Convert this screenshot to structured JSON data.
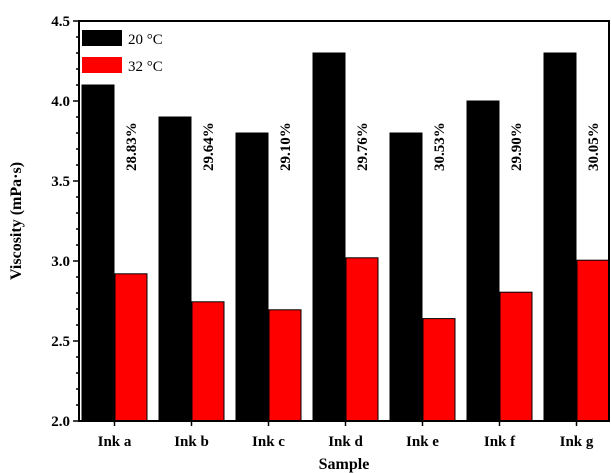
{
  "chart_data": {
    "type": "bar",
    "xlabel": "Sample",
    "ylabel": "Viscosity (mPa·s)",
    "categories": [
      "Ink a",
      "Ink b",
      "Ink c",
      "Ink d",
      "Ink e",
      "Ink f",
      "Ink g"
    ],
    "series": [
      {
        "name": "20 °C",
        "values": [
          4.1,
          3.9,
          3.8,
          4.3,
          3.8,
          4.0,
          4.3
        ],
        "color": "#000000"
      },
      {
        "name": "32 °C",
        "values": [
          2.92,
          2.745,
          2.695,
          3.02,
          2.64,
          2.805,
          3.005
        ],
        "color": "#ff0000"
      }
    ],
    "annotations": [
      "28.83%",
      "29.64%",
      "29.10%",
      "29.76%",
      "30.53%",
      "29.90%",
      "30.05%"
    ],
    "yticks": [
      "2.0",
      "2.5",
      "3.0",
      "3.5",
      "4.0",
      "4.5"
    ],
    "ylim": [
      2.0,
      4.5
    ],
    "legend_position": "top-left",
    "grid": false
  }
}
